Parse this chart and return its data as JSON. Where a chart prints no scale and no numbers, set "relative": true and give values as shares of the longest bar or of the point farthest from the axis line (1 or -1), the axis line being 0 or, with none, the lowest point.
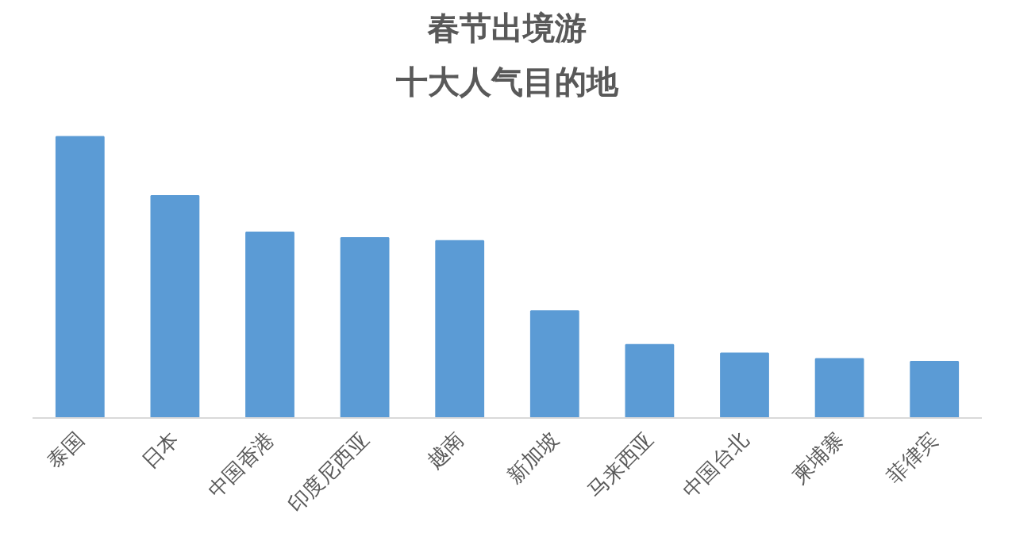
{
  "chart_data": {
    "type": "bar",
    "title": "春节出境游",
    "subtitle": "十大人气目的地",
    "categories": [
      "泰国",
      "日本",
      "中国香港",
      "印度尼西亚",
      "越南",
      "新加坡",
      "马来西亚",
      "中国台北",
      "柬埔寨",
      "菲律宾"
    ],
    "values": [
      1,
      0.79,
      0.66,
      0.64,
      0.63,
      0.38,
      0.26,
      0.23,
      0.21,
      0.2
    ],
    "color": "#5b9bd5",
    "relative": true,
    "grid": false
  }
}
